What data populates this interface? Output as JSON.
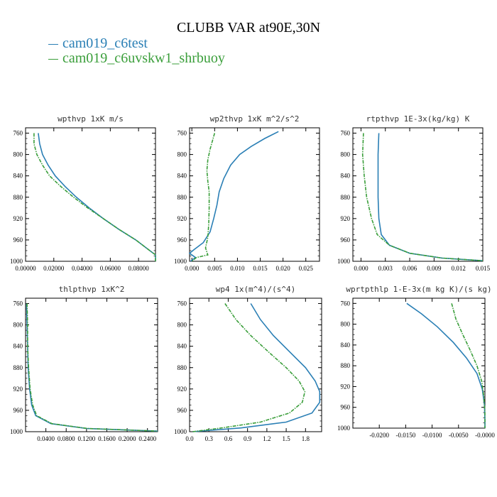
{
  "figure_title": "CLUBB VAR at90E,30N",
  "legend": [
    {
      "label": "cam019_c6test",
      "color": "#2a7fb5"
    },
    {
      "label": "cam019_c6uvskw1_shrbuoy",
      "color": "#3a9e3a"
    }
  ],
  "chart_data": [
    {
      "type": "line",
      "title": "wpthvp  1xK m/s",
      "ylim": [
        1000,
        750
      ],
      "yticks": [
        760,
        800,
        840,
        880,
        920,
        960,
        1000
      ],
      "xlim": [
        0,
        0.092
      ],
      "xticks": [
        0,
        0.02,
        0.04,
        0.06,
        0.08
      ],
      "xticklabels": [
        "0.00000",
        "0.02000",
        "0.04000",
        "0.06000",
        "0.08000"
      ],
      "series": [
        {
          "name": "cam019_c6test",
          "points": [
            [
              0.009,
              760
            ],
            [
              0.01,
              780
            ],
            [
              0.012,
              800
            ],
            [
              0.016,
              820
            ],
            [
              0.021,
              840
            ],
            [
              0.028,
              860
            ],
            [
              0.036,
              880
            ],
            [
              0.045,
              900
            ],
            [
              0.055,
              920
            ],
            [
              0.066,
              940
            ],
            [
              0.078,
              960
            ],
            [
              0.088,
              980
            ],
            [
              0.092,
              988
            ],
            [
              0.092,
              1000
            ]
          ]
        },
        {
          "name": "cam019_c6uvskw1_shrbuoy",
          "points": [
            [
              0.006,
              760
            ],
            [
              0.006,
              780
            ],
            [
              0.008,
              800
            ],
            [
              0.012,
              820
            ],
            [
              0.017,
              840
            ],
            [
              0.025,
              860
            ],
            [
              0.034,
              880
            ],
            [
              0.044,
              900
            ],
            [
              0.055,
              920
            ],
            [
              0.066,
              940
            ],
            [
              0.078,
              960
            ],
            [
              0.088,
              980
            ],
            [
              0.092,
              988
            ],
            [
              0.092,
              1000
            ]
          ]
        }
      ]
    },
    {
      "type": "line",
      "title": "wp2thvp  1xK m^2/s^2",
      "ylim": [
        1000,
        750
      ],
      "yticks": [
        760,
        800,
        840,
        880,
        920,
        960,
        1000
      ],
      "xlim": [
        -0.0005,
        0.028
      ],
      "xticks": [
        0,
        0.005,
        0.01,
        0.015,
        0.02,
        0.025
      ],
      "xticklabels": [
        "0.000",
        "0.005",
        "0.010",
        "0.015",
        "0.020",
        "0.025"
      ],
      "series": [
        {
          "name": "cam019_c6test",
          "points": [
            [
              0.019,
              757
            ],
            [
              0.016,
              770
            ],
            [
              0.013,
              785
            ],
            [
              0.0105,
              800
            ],
            [
              0.0085,
              820
            ],
            [
              0.007,
              845
            ],
            [
              0.006,
              870
            ],
            [
              0.0055,
              895
            ],
            [
              0.0048,
              920
            ],
            [
              0.004,
              945
            ],
            [
              0.0025,
              965
            ],
            [
              0.0005,
              978
            ],
            [
              -0.0005,
              985
            ],
            [
              0.0008,
              993
            ],
            [
              -0.0003,
              1000
            ]
          ]
        },
        {
          "name": "cam019_c6uvskw1_shrbuoy",
          "points": [
            [
              0.005,
              760
            ],
            [
              0.0045,
              775
            ],
            [
              0.004,
              790
            ],
            [
              0.0035,
              810
            ],
            [
              0.0033,
              830
            ],
            [
              0.0035,
              850
            ],
            [
              0.0038,
              870
            ],
            [
              0.0038,
              900
            ],
            [
              0.0037,
              930
            ],
            [
              0.0035,
              955
            ],
            [
              0.003,
              975
            ],
            [
              0.0035,
              988
            ],
            [
              0.001,
              993
            ],
            [
              0.0,
              1000
            ]
          ]
        }
      ]
    },
    {
      "type": "line",
      "title": "rtpthvp  1E-3x(kg/kg) K",
      "ylim": [
        1000,
        750
      ],
      "yticks": [
        760,
        800,
        840,
        880,
        920,
        960,
        1000
      ],
      "xlim": [
        -0.001,
        0.015
      ],
      "xticks": [
        0,
        0.003,
        0.006,
        0.009,
        0.012,
        0.015
      ],
      "xticklabels": [
        "0.000",
        "0.003",
        "0.006",
        "0.009",
        "0.012",
        "0.015"
      ],
      "series": [
        {
          "name": "cam019_c6test",
          "points": [
            [
              0.0022,
              760
            ],
            [
              0.0021,
              800
            ],
            [
              0.0021,
              840
            ],
            [
              0.0021,
              880
            ],
            [
              0.0022,
              920
            ],
            [
              0.0025,
              950
            ],
            [
              0.0035,
              970
            ],
            [
              0.006,
              985
            ],
            [
              0.01,
              994
            ],
            [
              0.015,
              999
            ]
          ]
        },
        {
          "name": "cam019_c6uvskw1_shrbuoy",
          "points": [
            [
              0.0003,
              760
            ],
            [
              0.0002,
              800
            ],
            [
              0.0004,
              840
            ],
            [
              0.0007,
              880
            ],
            [
              0.0013,
              920
            ],
            [
              0.002,
              950
            ],
            [
              0.0035,
              970
            ],
            [
              0.006,
              985
            ],
            [
              0.01,
              994
            ],
            [
              0.015,
              999
            ]
          ]
        }
      ]
    },
    {
      "type": "line",
      "title": "thlpthvp  1xK^2",
      "ylim": [
        1000,
        750
      ],
      "yticks": [
        760,
        800,
        840,
        880,
        920,
        960,
        1000
      ],
      "xlim": [
        0,
        0.26
      ],
      "xticks": [
        0.04,
        0.08,
        0.12,
        0.16,
        0.2,
        0.24
      ],
      "xticklabels": [
        "0.0400",
        "0.0800",
        "0.1200",
        "0.1600",
        "0.2000",
        "0.2400"
      ],
      "series": [
        {
          "name": "cam019_c6test",
          "points": [
            [
              0.002,
              760
            ],
            [
              0.003,
              800
            ],
            [
              0.004,
              840
            ],
            [
              0.005,
              880
            ],
            [
              0.008,
              920
            ],
            [
              0.012,
              950
            ],
            [
              0.02,
              970
            ],
            [
              0.05,
              985
            ],
            [
              0.12,
              994
            ],
            [
              0.26,
              999
            ]
          ]
        },
        {
          "name": "cam019_c6uvskw1_shrbuoy",
          "points": [
            [
              0.003,
              760
            ],
            [
              0.004,
              800
            ],
            [
              0.004,
              840
            ],
            [
              0.006,
              880
            ],
            [
              0.009,
              920
            ],
            [
              0.014,
              950
            ],
            [
              0.022,
              970
            ],
            [
              0.052,
              985
            ],
            [
              0.122,
              994
            ],
            [
              0.26,
              999
            ]
          ]
        }
      ]
    },
    {
      "type": "line",
      "title": "wp4  1x(m^4)/(s^4)",
      "ylim": [
        1000,
        750
      ],
      "yticks": [
        760,
        800,
        840,
        880,
        920,
        960,
        1000
      ],
      "xlim": [
        0,
        2.05
      ],
      "xticks": [
        0,
        0.3,
        0.6,
        0.9,
        1.2,
        1.5,
        1.8
      ],
      "xticklabels": [
        "0.0",
        "0.3",
        "0.6",
        "0.9",
        "1.2",
        "1.5",
        "1.8"
      ],
      "series": [
        {
          "name": "cam019_c6test",
          "points": [
            [
              0.95,
              760
            ],
            [
              1.1,
              790
            ],
            [
              1.3,
              820
            ],
            [
              1.55,
              850
            ],
            [
              1.8,
              880
            ],
            [
              1.95,
              905
            ],
            [
              2.02,
              925
            ],
            [
              2.02,
              945
            ],
            [
              1.9,
              965
            ],
            [
              1.5,
              982
            ],
            [
              0.8,
              993
            ],
            [
              0.05,
              1000
            ]
          ]
        },
        {
          "name": "cam019_c6uvskw1_shrbuoy",
          "points": [
            [
              0.55,
              760
            ],
            [
              0.72,
              790
            ],
            [
              0.95,
              820
            ],
            [
              1.22,
              850
            ],
            [
              1.5,
              880
            ],
            [
              1.7,
              905
            ],
            [
              1.79,
              925
            ],
            [
              1.75,
              945
            ],
            [
              1.55,
              965
            ],
            [
              1.1,
              982
            ],
            [
              0.5,
              993
            ],
            [
              0.05,
              1000
            ]
          ]
        }
      ]
    },
    {
      "type": "line",
      "title": "wprtpthlp  1-E-3x(m kg K)/(s kg)",
      "ylim": [
        1000,
        750
      ],
      "yticks": [
        760,
        800,
        840,
        880,
        920,
        960,
        1000
      ],
      "xlim": [
        -0.025,
        0
      ],
      "xticks": [
        -0.02,
        -0.015,
        -0.01,
        -0.005,
        0
      ],
      "xticklabels": [
        "-0.0200",
        "-0.0150",
        "-0.0100",
        "-0.0050",
        "-0.0000"
      ],
      "series": [
        {
          "name": "cam019_c6test",
          "points": [
            [
              -0.0148,
              760
            ],
            [
              -0.012,
              780
            ],
            [
              -0.009,
              805
            ],
            [
              -0.006,
              835
            ],
            [
              -0.0035,
              865
            ],
            [
              -0.0015,
              895
            ],
            [
              -0.0005,
              925
            ],
            [
              -0.0001,
              955
            ],
            [
              0.0,
              985
            ],
            [
              0.0,
              1000
            ]
          ]
        },
        {
          "name": "cam019_c6uvskw1_shrbuoy",
          "points": [
            [
              -0.0063,
              760
            ],
            [
              -0.0055,
              790
            ],
            [
              -0.0042,
              820
            ],
            [
              -0.0028,
              850
            ],
            [
              -0.0015,
              880
            ],
            [
              -0.0006,
              910
            ],
            [
              -0.0002,
              940
            ],
            [
              0.0,
              970
            ],
            [
              0.0,
              1000
            ]
          ]
        }
      ]
    }
  ]
}
